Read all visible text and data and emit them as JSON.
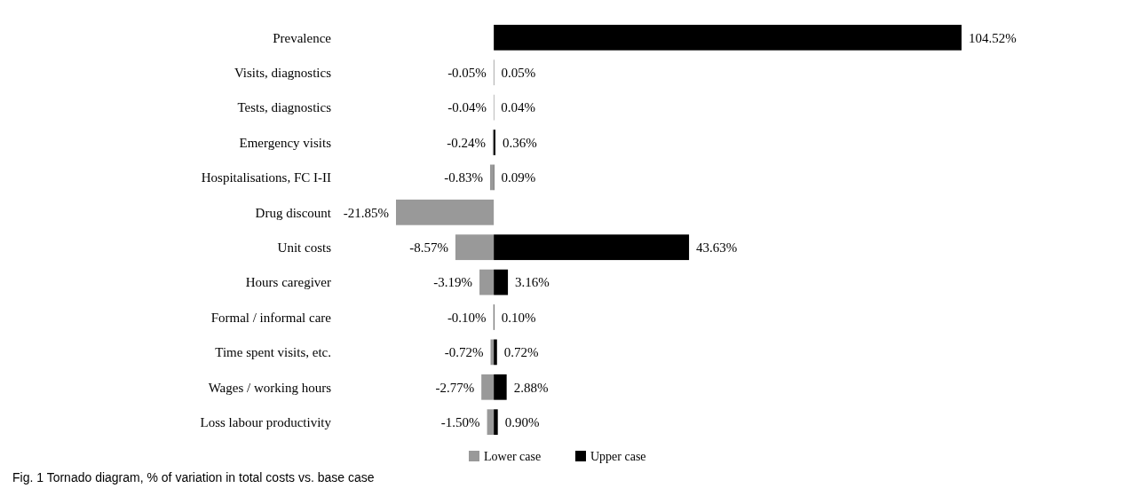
{
  "chart_data": {
    "type": "bar",
    "orientation": "horizontal",
    "categories": [
      "Prevalence",
      "Visits, diagnostics",
      "Tests, diagnostics",
      "Emergency visits",
      "Hospitalisations, FC I-II",
      "Drug discount",
      "Unit costs",
      "Hours caregiver",
      "Formal / informal care",
      "Time spent visits, etc.",
      "Wages / working hours",
      "Loss labour productivity"
    ],
    "series": [
      {
        "name": "Lower case",
        "color": "#999999",
        "values": [
          null,
          -0.05,
          -0.04,
          -0.24,
          -0.83,
          -21.85,
          -8.57,
          -3.19,
          -0.1,
          -0.72,
          -2.77,
          -1.5
        ],
        "value_labels": [
          null,
          "-0.05%",
          "-0.04%",
          "-0.24%",
          "-0.83%",
          "-21.85%",
          "-8.57%",
          "-3.19%",
          "-0.10%",
          "-0.72%",
          "-2.77%",
          "-1.50%"
        ]
      },
      {
        "name": "Upper case",
        "color": "#000000",
        "values": [
          104.52,
          0.05,
          0.04,
          0.36,
          0.09,
          null,
          43.63,
          3.16,
          0.1,
          0.72,
          2.88,
          0.9
        ],
        "value_labels": [
          "104.52%",
          "0.05%",
          "0.04%",
          "0.36%",
          "0.09%",
          null,
          "43.63%",
          "3.16%",
          "0.10%",
          "0.72%",
          "2.88%",
          "0.90%"
        ]
      }
    ],
    "legend": "bottom",
    "annotations": [
      "Fig. 1 Tornado diagram, % of variation in total costs vs. base case"
    ]
  }
}
